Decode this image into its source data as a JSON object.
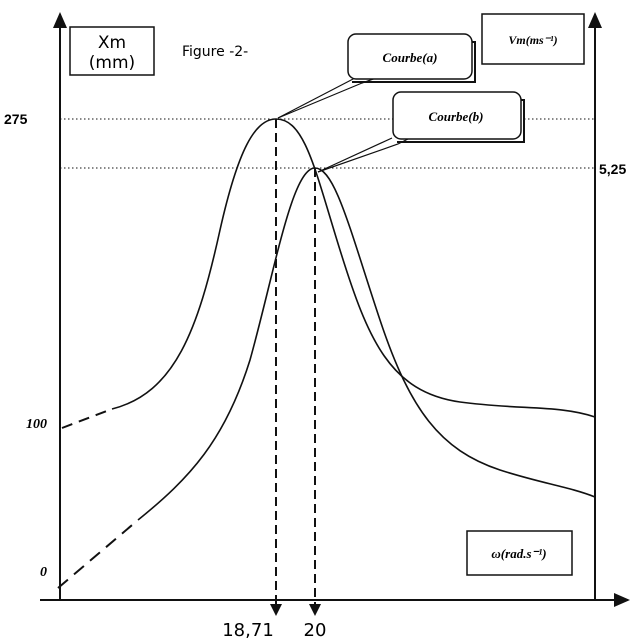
{
  "chart_data": {
    "type": "line",
    "figure_label": "Figure -2-",
    "left_axis_label": [
      "Xm",
      "(mm)"
    ],
    "right_axis_label": "Vm(ms⁻¹)",
    "x_axis_label": "ω(rad.s⁻¹)",
    "left_ticks": [
      "275",
      "100",
      "0"
    ],
    "right_ticks": [
      "5,25"
    ],
    "x_ticks": [
      "18,71",
      "20"
    ],
    "series": [
      {
        "name": "Courbe(a)",
        "peak_x": 18.71,
        "peak_value": 275,
        "start_value": 100
      },
      {
        "name": "Courbe(b)",
        "peak_x": 20,
        "peak_value": 5.25,
        "start_value": 0
      }
    ]
  }
}
